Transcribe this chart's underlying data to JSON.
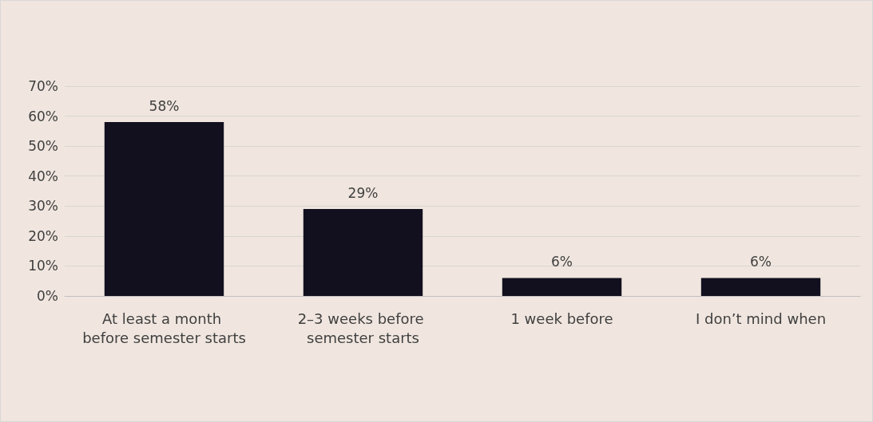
{
  "chart_data": {
    "type": "bar",
    "categories": [
      "At least a month before semester starts",
      "2–3 weeks before semester starts",
      "1 week before",
      "I don’t mind when"
    ],
    "values": [
      58,
      29,
      6,
      6
    ],
    "value_labels": [
      "58%",
      "29%",
      "6%",
      "6%"
    ],
    "color": "#12101f",
    "ylim": [
      0,
      70
    ],
    "yticks": [
      {
        "value": 0,
        "label": "0%"
      },
      {
        "value": 10,
        "label": "10%"
      },
      {
        "value": 20,
        "label": "20%"
      },
      {
        "value": 30,
        "label": "30%"
      },
      {
        "value": 40,
        "label": "40%"
      },
      {
        "value": 50,
        "label": "50%"
      },
      {
        "value": 60,
        "label": "60%"
      },
      {
        "value": 70,
        "label": "70%"
      }
    ],
    "grid": true
  }
}
